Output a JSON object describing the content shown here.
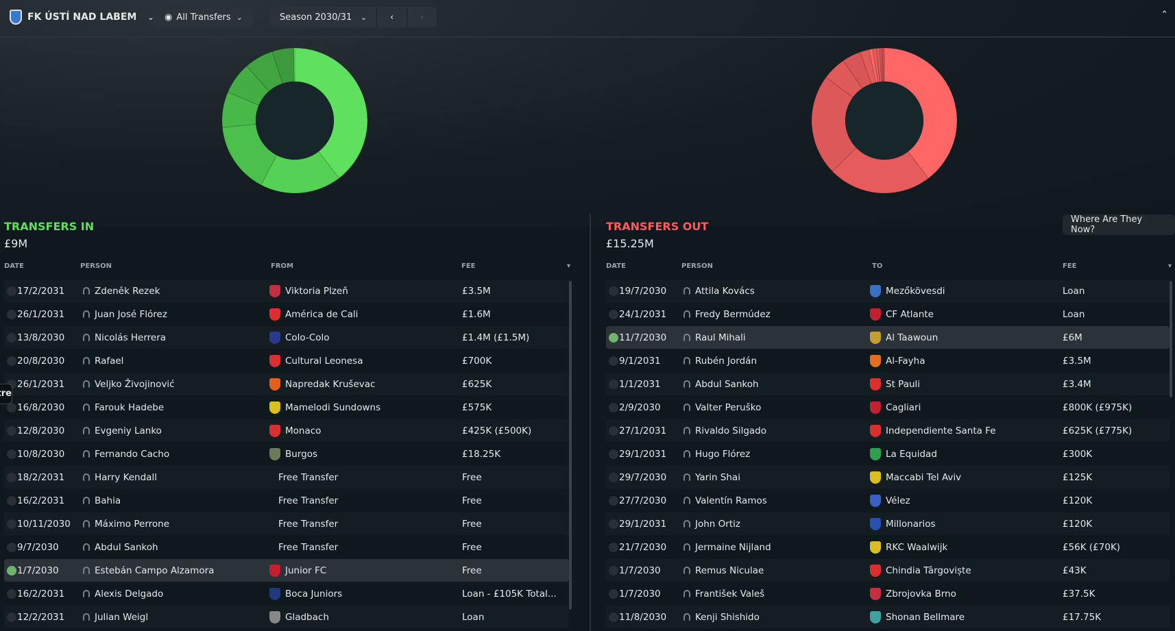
{
  "header": {
    "club": "FK ÚSTÍ NAD LABEM",
    "filter": "All Transfers",
    "season": "Season 2030/31"
  },
  "colors": {
    "in": "#5ee05e",
    "out": "#ff5c5c"
  },
  "transfers_in": {
    "title": "TRANSFERS IN",
    "total": "£9M",
    "columns": [
      "DATE",
      "PERSON",
      "FROM",
      "FEE"
    ],
    "rows": [
      {
        "date": "17/2/2031",
        "person": "Zdeněk Rezek",
        "club": "Viktoria Plzeň",
        "fee": "£3.5M",
        "badge": "#c03040"
      },
      {
        "date": "26/1/2031",
        "person": "Juan José Flórez",
        "club": "América de Cali",
        "fee": "£1.6M",
        "badge": "#d83030"
      },
      {
        "date": "13/8/2030",
        "person": "Nicolás Herrera",
        "club": "Colo-Colo",
        "fee": "£1.4M (£1.5M)",
        "badge": "#2a3a8a"
      },
      {
        "date": "20/8/2030",
        "person": "Rafael",
        "club": "Cultural Leonesa",
        "fee": "£700K",
        "badge": "#d83030"
      },
      {
        "date": "26/1/2031",
        "person": "Veljko Živojinović",
        "club": "Napredak Kruševac",
        "fee": "£625K",
        "badge": "#e06020"
      },
      {
        "date": "16/8/2030",
        "person": "Farouk Hadebe",
        "club": "Mamelodi Sundowns",
        "fee": "£575K",
        "badge": "#d8c020"
      },
      {
        "date": "12/8/2030",
        "person": "Evgeniy Lanko",
        "club": "Monaco",
        "fee": "£425K (£500K)",
        "badge": "#d83030"
      },
      {
        "date": "10/8/2030",
        "person": "Fernando Cacho",
        "club": "Burgos",
        "fee": "£18.25K",
        "badge": "#6a7a5a"
      },
      {
        "date": "18/2/2031",
        "person": "Harry Kendall",
        "club": "Free Transfer",
        "fee": "Free",
        "badge": ""
      },
      {
        "date": "16/2/2031",
        "person": "Bahia",
        "club": "Free Transfer",
        "fee": "Free",
        "badge": ""
      },
      {
        "date": "10/11/2030",
        "person": "Máximo Perrone",
        "club": "Free Transfer",
        "fee": "Free",
        "badge": ""
      },
      {
        "date": "9/7/2030",
        "person": "Abdul Sankoh",
        "club": "Free Transfer",
        "fee": "Free",
        "badge": ""
      },
      {
        "date": "1/7/2030",
        "person": "Estebán Campo Alzamora",
        "club": "Junior FC",
        "fee": "Free",
        "badge": "#c02030",
        "selected": true
      },
      {
        "date": "16/2/2031",
        "person": "Alexis Delgado",
        "club": "Boca Juniors",
        "fee": "Loan - £105K Total...",
        "badge": "#203a80"
      },
      {
        "date": "12/2/2031",
        "person": "Julian Weigl",
        "club": "Gladbach",
        "fee": "Loan",
        "badge": "#888888"
      }
    ],
    "donut": [
      3.5,
      1.6,
      1.4,
      0.7,
      0.625,
      0.575,
      0.425,
      0.01825
    ]
  },
  "transfers_out": {
    "title": "TRANSFERS OUT",
    "total": "£15.25M",
    "where_button": "Where Are They Now?",
    "columns": [
      "DATE",
      "PERSON",
      "TO",
      "FEE"
    ],
    "rows": [
      {
        "date": "19/7/2030",
        "person": "Attila Kovács",
        "club": "Mezőkövesdi",
        "fee": "Loan",
        "badge": "#3a70c0"
      },
      {
        "date": "24/1/2031",
        "person": "Fredy Bermúdez",
        "club": "CF Atlante",
        "fee": "Loan",
        "badge": "#c02030"
      },
      {
        "date": "11/7/2030",
        "person": "Raul Mihali",
        "club": "Al Taawoun",
        "fee": "£6M",
        "badge": "#c0a030",
        "selected": true
      },
      {
        "date": "9/1/2031",
        "person": "Rubén Jordán",
        "club": "Al-Fayha",
        "fee": "£3.5M",
        "badge": "#e07020"
      },
      {
        "date": "1/1/2031",
        "person": "Abdul Sankoh",
        "club": "St Pauli",
        "fee": "£3.4M",
        "badge": "#d83030"
      },
      {
        "date": "2/9/2030",
        "person": "Valter Peruško",
        "club": "Cagliari",
        "fee": "£800K (£975K)",
        "badge": "#c02030"
      },
      {
        "date": "27/1/2031",
        "person": "Rivaldo Silgado",
        "club": "Independiente Santa Fe",
        "fee": "£625K (£775K)",
        "badge": "#d83030"
      },
      {
        "date": "29/1/2031",
        "person": "Hugo Flórez",
        "club": "La Equidad",
        "fee": "£300K",
        "badge": "#30a050"
      },
      {
        "date": "29/7/2030",
        "person": "Yarin Shai",
        "club": "Maccabi Tel Aviv",
        "fee": "£125K",
        "badge": "#d8c020"
      },
      {
        "date": "27/7/2030",
        "person": "Valentín Ramos",
        "club": "Vélez",
        "fee": "£120K",
        "badge": "#3a60c0"
      },
      {
        "date": "29/1/2031",
        "person": "John Ortiz",
        "club": "Millonarios",
        "fee": "£120K",
        "badge": "#2a50b0"
      },
      {
        "date": "21/7/2030",
        "person": "Jermaine Nijland",
        "club": "RKC Waalwijk",
        "fee": "£56K (£70K)",
        "badge": "#d8c020"
      },
      {
        "date": "1/7/2030",
        "person": "Remus Niculae",
        "club": "Chindia Târgoviște",
        "fee": "£43K",
        "badge": "#d83030"
      },
      {
        "date": "1/7/2030",
        "person": "František Valeš",
        "club": "Zbrojovka Brno",
        "fee": "£37.5K",
        "badge": "#c03040"
      },
      {
        "date": "11/8/2030",
        "person": "Kenji Shishido",
        "club": "Shonan Bellmare",
        "fee": "£17.75K",
        "badge": "#40a0a0"
      }
    ],
    "donut": [
      6,
      3.5,
      3.4,
      0.8,
      0.625,
      0.3,
      0.125,
      0.12,
      0.12,
      0.056,
      0.043,
      0.0375,
      0.0175
    ]
  },
  "side_tab": "ntre"
}
